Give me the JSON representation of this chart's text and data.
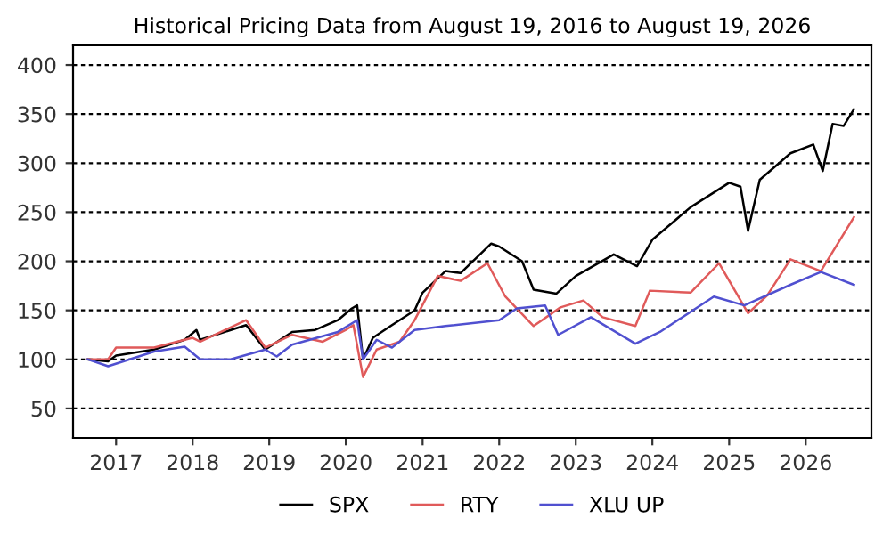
{
  "chart_data": {
    "type": "line",
    "title": "Historical Pricing Data from August 19, 2016 to August 19, 2026",
    "series": [
      {
        "name": "SPX",
        "color": "#000000",
        "x": [
          "2016-08-19",
          "2016-11-24",
          "2017-01-01",
          "2017-07-01",
          "2017-11-24",
          "2018-01-19",
          "2018-02-06",
          "2018-09-13",
          "2018-12-13",
          "2019-04-20",
          "2019-08-08",
          "2019-11-24",
          "2020-01-30",
          "2020-02-24",
          "2020-03-23",
          "2020-05-09",
          "2020-08-08",
          "2020-11-24",
          "2021-01-01",
          "2021-04-20",
          "2021-07-01",
          "2021-11-24",
          "2022-01-01",
          "2022-04-20",
          "2022-06-14",
          "2022-10-01",
          "2023-01-01",
          "2023-07-01",
          "2023-10-20",
          "2024-01-01",
          "2024-07-01",
          "2025-01-01",
          "2025-02-24",
          "2025-04-01",
          "2025-05-27",
          "2025-10-20",
          "2026-02-06",
          "2026-03-23",
          "2026-05-09",
          "2026-07-01",
          "2026-08-19"
        ],
        "values": [
          100,
          98,
          104,
          110,
          120,
          130,
          120,
          135,
          110,
          128,
          130,
          140,
          152,
          155,
          100,
          122,
          135,
          150,
          168,
          190,
          188,
          218,
          215,
          200,
          171,
          167,
          185,
          207,
          195,
          222,
          255,
          280,
          276,
          231,
          283,
          310,
          319,
          292,
          340,
          338,
          355
        ]
      },
      {
        "name": "RTY",
        "color": "#e05a5a",
        "x": [
          "2016-08-19",
          "2016-11-24",
          "2017-01-01",
          "2017-07-01",
          "2018-01-01",
          "2018-02-06",
          "2018-09-13",
          "2018-12-13",
          "2019-04-20",
          "2019-09-13",
          "2020-01-01",
          "2020-02-06",
          "2020-03-23",
          "2020-05-27",
          "2020-09-13",
          "2020-11-24",
          "2021-03-14",
          "2021-07-01",
          "2021-11-06",
          "2022-01-30",
          "2022-06-14",
          "2022-10-20",
          "2023-02-06",
          "2023-05-09",
          "2023-10-12",
          "2023-12-20",
          "2024-07-01",
          "2024-11-14",
          "2025-04-01",
          "2025-07-01",
          "2025-10-20",
          "2026-03-14",
          "2026-08-19"
        ],
        "values": [
          100,
          100,
          112,
          112,
          122,
          118,
          140,
          112,
          125,
          118,
          130,
          135,
          82,
          110,
          118,
          140,
          185,
          180,
          198,
          164,
          134,
          153,
          160,
          143,
          134,
          170,
          168,
          198,
          147,
          165,
          202,
          190,
          245
        ]
      },
      {
        "name": "XLU UP",
        "color": "#5050d0",
        "x": [
          "2016-08-19",
          "2016-11-24",
          "2017-07-01",
          "2017-11-24",
          "2018-02-06",
          "2018-07-01",
          "2018-12-13",
          "2019-02-06",
          "2019-04-20",
          "2019-11-24",
          "2020-02-24",
          "2020-03-23",
          "2020-05-27",
          "2020-08-08",
          "2020-11-24",
          "2021-04-20",
          "2022-01-01",
          "2022-03-26",
          "2022-08-08",
          "2022-10-09",
          "2023-03-14",
          "2023-10-12",
          "2024-02-06",
          "2024-10-20",
          "2025-03-14",
          "2025-10-20",
          "2026-03-14",
          "2026-08-19"
        ],
        "values": [
          100,
          93,
          108,
          113,
          100,
          100,
          110,
          103,
          115,
          128,
          140,
          100,
          120,
          112,
          130,
          134,
          140,
          152,
          155,
          125,
          143,
          116,
          128,
          164,
          155,
          176,
          189,
          176
        ]
      }
    ],
    "xlim": [
      "2016-06-10",
      "2026-11-10"
    ],
    "xticks": [
      "2017",
      "2018",
      "2019",
      "2020",
      "2021",
      "2022",
      "2023",
      "2024",
      "2025",
      "2026"
    ],
    "ylim": [
      20,
      420
    ],
    "yticks": [
      50,
      100,
      150,
      200,
      250,
      300,
      350,
      400
    ],
    "grid": "y",
    "legend": "bottom",
    "line_style": "solid",
    "marker": "none"
  }
}
